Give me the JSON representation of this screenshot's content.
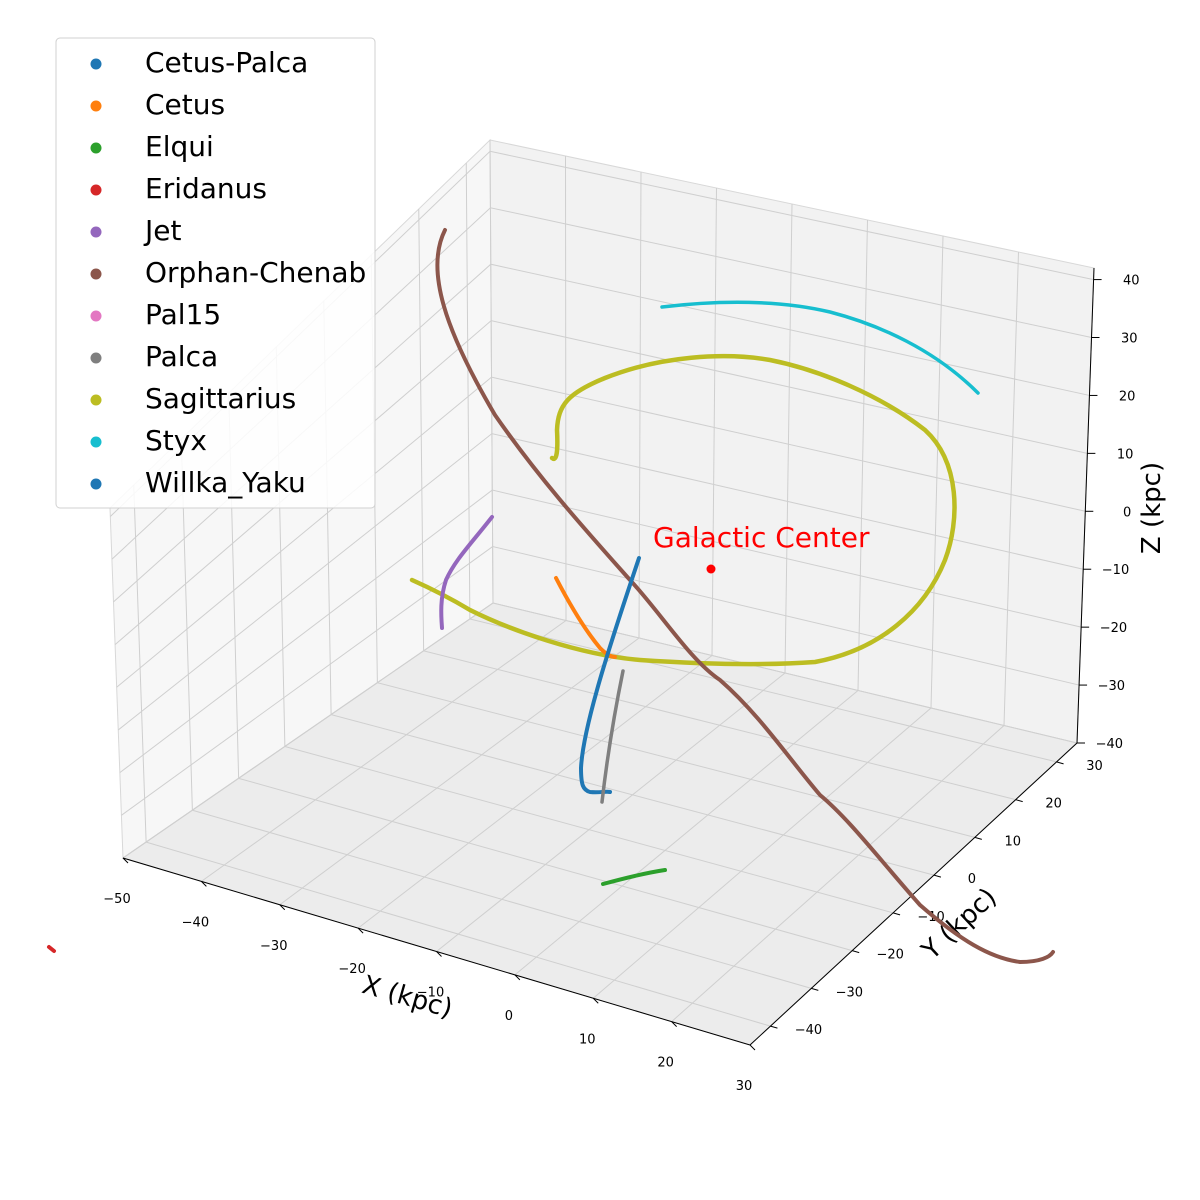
{
  "chart_data": {
    "type": "scatter3d",
    "xlabel": "X (kpc)",
    "ylabel": "Y (kpc)",
    "zlabel": "Z (kpc)",
    "x_ticks": [
      -50,
      -40,
      -30,
      -20,
      -10,
      0,
      10,
      20,
      30
    ],
    "y_ticks": [
      -40,
      -30,
      -20,
      -10,
      0,
      10,
      20,
      30
    ],
    "z_ticks": [
      -40,
      -30,
      -20,
      -10,
      0,
      10,
      20,
      30,
      40
    ],
    "xlim": [
      -50,
      30
    ],
    "ylim": [
      -45,
      35
    ],
    "zlim": [
      -40,
      42
    ],
    "grid": true,
    "legend_position": "upper-left",
    "annotation": {
      "text": "Galactic Center",
      "color": "#ff0000",
      "point": [
        0,
        0,
        0
      ]
    },
    "series": [
      {
        "name": "Cetus-Palca",
        "color": "#1f77b4"
      },
      {
        "name": "Cetus",
        "color": "#ff7f0e"
      },
      {
        "name": "Elqui",
        "color": "#2ca02c"
      },
      {
        "name": "Eridanus",
        "color": "#d62728"
      },
      {
        "name": "Jet",
        "color": "#9467bd"
      },
      {
        "name": "Orphan-Chenab",
        "color": "#8c564b"
      },
      {
        "name": "Pal15",
        "color": "#e377c2"
      },
      {
        "name": "Palca",
        "color": "#7f7f7f"
      },
      {
        "name": "Sagittarius",
        "color": "#bcbd22"
      },
      {
        "name": "Styx",
        "color": "#17becf"
      },
      {
        "name": "Willka_Yaku",
        "color": "#1f77b4"
      }
    ]
  }
}
